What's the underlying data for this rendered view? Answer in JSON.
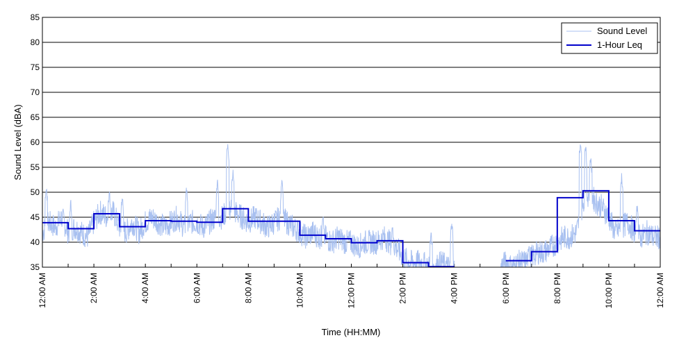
{
  "chart_data": {
    "type": "line",
    "title": "",
    "xlabel": "Time (HH:MM)",
    "ylabel": "Sound Level (dBA)",
    "ylim": [
      35,
      85
    ],
    "yticks": [
      35,
      40,
      45,
      50,
      55,
      60,
      65,
      70,
      75,
      80,
      85
    ],
    "xlim_hours": [
      0,
      24
    ],
    "xticks": [
      {
        "hour": 0,
        "label": "12:00 AM"
      },
      {
        "hour": 2,
        "label": "2:00 AM"
      },
      {
        "hour": 4,
        "label": "4:00 AM"
      },
      {
        "hour": 6,
        "label": "6:00 AM"
      },
      {
        "hour": 8,
        "label": "8:00 AM"
      },
      {
        "hour": 10,
        "label": "10:00 AM"
      },
      {
        "hour": 12,
        "label": "12:00 PM"
      },
      {
        "hour": 14,
        "label": "2:00 PM"
      },
      {
        "hour": 16,
        "label": "4:00 PM"
      },
      {
        "hour": 18,
        "label": "6:00 PM"
      },
      {
        "hour": 20,
        "label": "8:00 PM"
      },
      {
        "hour": 22,
        "label": "10:00 PM"
      },
      {
        "hour": 24,
        "label": "12:00 AM"
      }
    ],
    "grid": "horizontal",
    "legend_position": "top-right",
    "series": [
      {
        "name": "Sound Level",
        "color": "#a8c0f0",
        "style": "noisy-line",
        "points": [
          [
            0.0,
            42
          ],
          [
            0.25,
            44
          ],
          [
            0.5,
            43
          ],
          [
            0.75,
            45
          ],
          [
            1.0,
            42
          ],
          [
            1.25,
            43
          ],
          [
            1.5,
            42
          ],
          [
            1.75,
            41
          ],
          [
            2.0,
            44
          ],
          [
            2.25,
            46
          ],
          [
            2.5,
            45
          ],
          [
            2.75,
            46
          ],
          [
            3.0,
            43
          ],
          [
            3.25,
            42
          ],
          [
            3.5,
            44
          ],
          [
            3.75,
            42
          ],
          [
            4.0,
            44
          ],
          [
            4.25,
            45
          ],
          [
            4.5,
            44
          ],
          [
            4.75,
            43
          ],
          [
            5.0,
            44
          ],
          [
            5.25,
            45
          ],
          [
            5.5,
            43
          ],
          [
            5.75,
            44
          ],
          [
            6.0,
            44
          ],
          [
            6.25,
            43
          ],
          [
            6.5,
            44
          ],
          [
            6.75,
            45
          ],
          [
            7.0,
            45
          ],
          [
            7.25,
            47
          ],
          [
            7.5,
            46
          ],
          [
            7.75,
            45
          ],
          [
            8.0,
            44
          ],
          [
            8.25,
            45
          ],
          [
            8.5,
            44
          ],
          [
            8.75,
            43
          ],
          [
            9.0,
            44
          ],
          [
            9.25,
            45
          ],
          [
            9.5,
            44
          ],
          [
            9.75,
            43
          ],
          [
            10.0,
            42
          ],
          [
            10.25,
            41
          ],
          [
            10.5,
            42
          ],
          [
            10.75,
            41
          ],
          [
            11.0,
            41
          ],
          [
            11.25,
            40
          ],
          [
            11.5,
            41
          ],
          [
            11.75,
            40
          ],
          [
            12.0,
            40
          ],
          [
            12.25,
            39
          ],
          [
            12.5,
            40
          ],
          [
            12.75,
            40
          ],
          [
            13.0,
            40
          ],
          [
            13.25,
            41
          ],
          [
            13.5,
            40
          ],
          [
            13.75,
            39
          ],
          [
            14.0,
            37
          ],
          [
            14.25,
            36
          ],
          [
            14.5,
            36
          ],
          [
            14.75,
            36
          ],
          [
            15.0,
            35
          ],
          [
            15.25,
            35
          ],
          [
            15.5,
            36
          ],
          [
            15.75,
            35
          ],
          [
            16.0,
            35
          ],
          [
            17.8,
            35
          ],
          [
            18.0,
            36
          ],
          [
            18.25,
            35
          ],
          [
            18.5,
            36
          ],
          [
            18.75,
            36
          ],
          [
            19.0,
            37
          ],
          [
            19.25,
            38
          ],
          [
            19.5,
            38
          ],
          [
            19.75,
            39
          ],
          [
            20.0,
            40
          ],
          [
            20.25,
            41
          ],
          [
            20.5,
            41
          ],
          [
            20.75,
            42
          ],
          [
            21.0,
            48
          ],
          [
            21.25,
            50
          ],
          [
            21.5,
            48
          ],
          [
            21.75,
            47
          ],
          [
            22.0,
            45
          ],
          [
            22.25,
            42
          ],
          [
            22.5,
            43
          ],
          [
            22.75,
            44
          ],
          [
            23.0,
            42
          ],
          [
            23.25,
            41
          ],
          [
            23.5,
            42
          ],
          [
            23.75,
            41
          ],
          [
            24.0,
            41
          ]
        ],
        "spikes": [
          [
            0.15,
            52
          ],
          [
            1.1,
            49
          ],
          [
            2.6,
            51
          ],
          [
            3.1,
            50
          ],
          [
            5.6,
            52
          ],
          [
            6.8,
            53
          ],
          [
            7.2,
            61
          ],
          [
            7.4,
            55
          ],
          [
            9.3,
            53
          ],
          [
            10.9,
            46
          ],
          [
            13.6,
            44
          ],
          [
            15.1,
            43
          ],
          [
            15.9,
            45
          ],
          [
            17.5,
            38
          ],
          [
            18.9,
            40
          ],
          [
            20.9,
            61
          ],
          [
            21.1,
            60
          ],
          [
            21.3,
            58
          ],
          [
            22.5,
            54
          ],
          [
            23.1,
            48
          ]
        ]
      },
      {
        "name": "1-Hour Leq",
        "color": "#0000cc",
        "style": "step",
        "steps": [
          {
            "start": 0,
            "end": 1,
            "value": 43.9
          },
          {
            "start": 1,
            "end": 2,
            "value": 42.7
          },
          {
            "start": 2,
            "end": 3,
            "value": 45.7
          },
          {
            "start": 3,
            "end": 4,
            "value": 43.1
          },
          {
            "start": 4,
            "end": 5,
            "value": 44.3
          },
          {
            "start": 5,
            "end": 6,
            "value": 44.2
          },
          {
            "start": 6,
            "end": 7,
            "value": 44.0
          },
          {
            "start": 7,
            "end": 8,
            "value": 46.7
          },
          {
            "start": 8,
            "end": 9,
            "value": 44.2
          },
          {
            "start": 9,
            "end": 10,
            "value": 44.2
          },
          {
            "start": 10,
            "end": 11,
            "value": 41.4
          },
          {
            "start": 11,
            "end": 12,
            "value": 40.7
          },
          {
            "start": 12,
            "end": 13,
            "value": 39.9
          },
          {
            "start": 13,
            "end": 14,
            "value": 40.3
          },
          {
            "start": 14,
            "end": 15,
            "value": 35.9
          },
          {
            "start": 15,
            "end": 16,
            "value": 35.1
          },
          {
            "start": 18,
            "end": 19,
            "value": 36.3
          },
          {
            "start": 19,
            "end": 20,
            "value": 38.1
          },
          {
            "start": 20,
            "end": 21,
            "value": 48.9
          },
          {
            "start": 21,
            "end": 22,
            "value": 50.3
          },
          {
            "start": 22,
            "end": 23,
            "value": 44.3
          },
          {
            "start": 23,
            "end": 24,
            "value": 42.3
          }
        ]
      }
    ]
  },
  "colors": {
    "sound_level": "#a8c0f0",
    "leq": "#0000cc",
    "grid": "#000000"
  }
}
